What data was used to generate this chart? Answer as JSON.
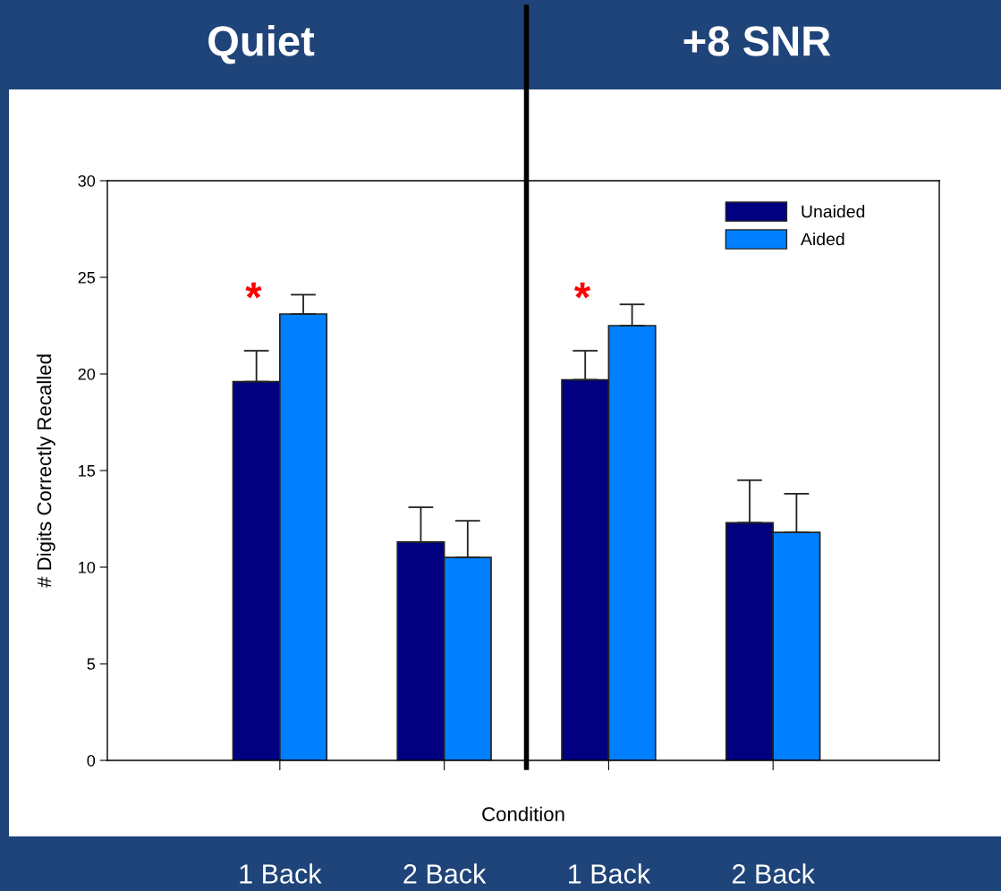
{
  "chart_data": {
    "type": "bar",
    "xlabel": "Condition",
    "ylabel": "# Digits Correctly Recalled",
    "categories": [
      "1 Back",
      "2 Back",
      "1 Back",
      "2 Back"
    ],
    "series": [
      {
        "name": "Unaided",
        "color": "#000080",
        "values": [
          19.6,
          11.3,
          19.7,
          12.3
        ],
        "errors": [
          [
            19.6,
            21.2
          ],
          [
            11.3,
            13.1
          ],
          [
            19.7,
            21.2
          ],
          [
            12.3,
            14.5
          ]
        ]
      },
      {
        "name": "Aided",
        "color": "#0080ff",
        "values": [
          23.1,
          10.5,
          22.5,
          11.8
        ],
        "errors": [
          [
            23.1,
            24.1
          ],
          [
            10.5,
            12.4
          ],
          [
            22.5,
            23.6
          ],
          [
            11.8,
            13.8
          ]
        ]
      }
    ],
    "ylim": [
      0,
      30
    ],
    "yticks": [
      0,
      5,
      10,
      15,
      20,
      25,
      30
    ],
    "legend": "top right",
    "grid": false,
    "annotations": [
      "Quiet",
      "+8 SNR",
      "*",
      "*"
    ]
  }
}
